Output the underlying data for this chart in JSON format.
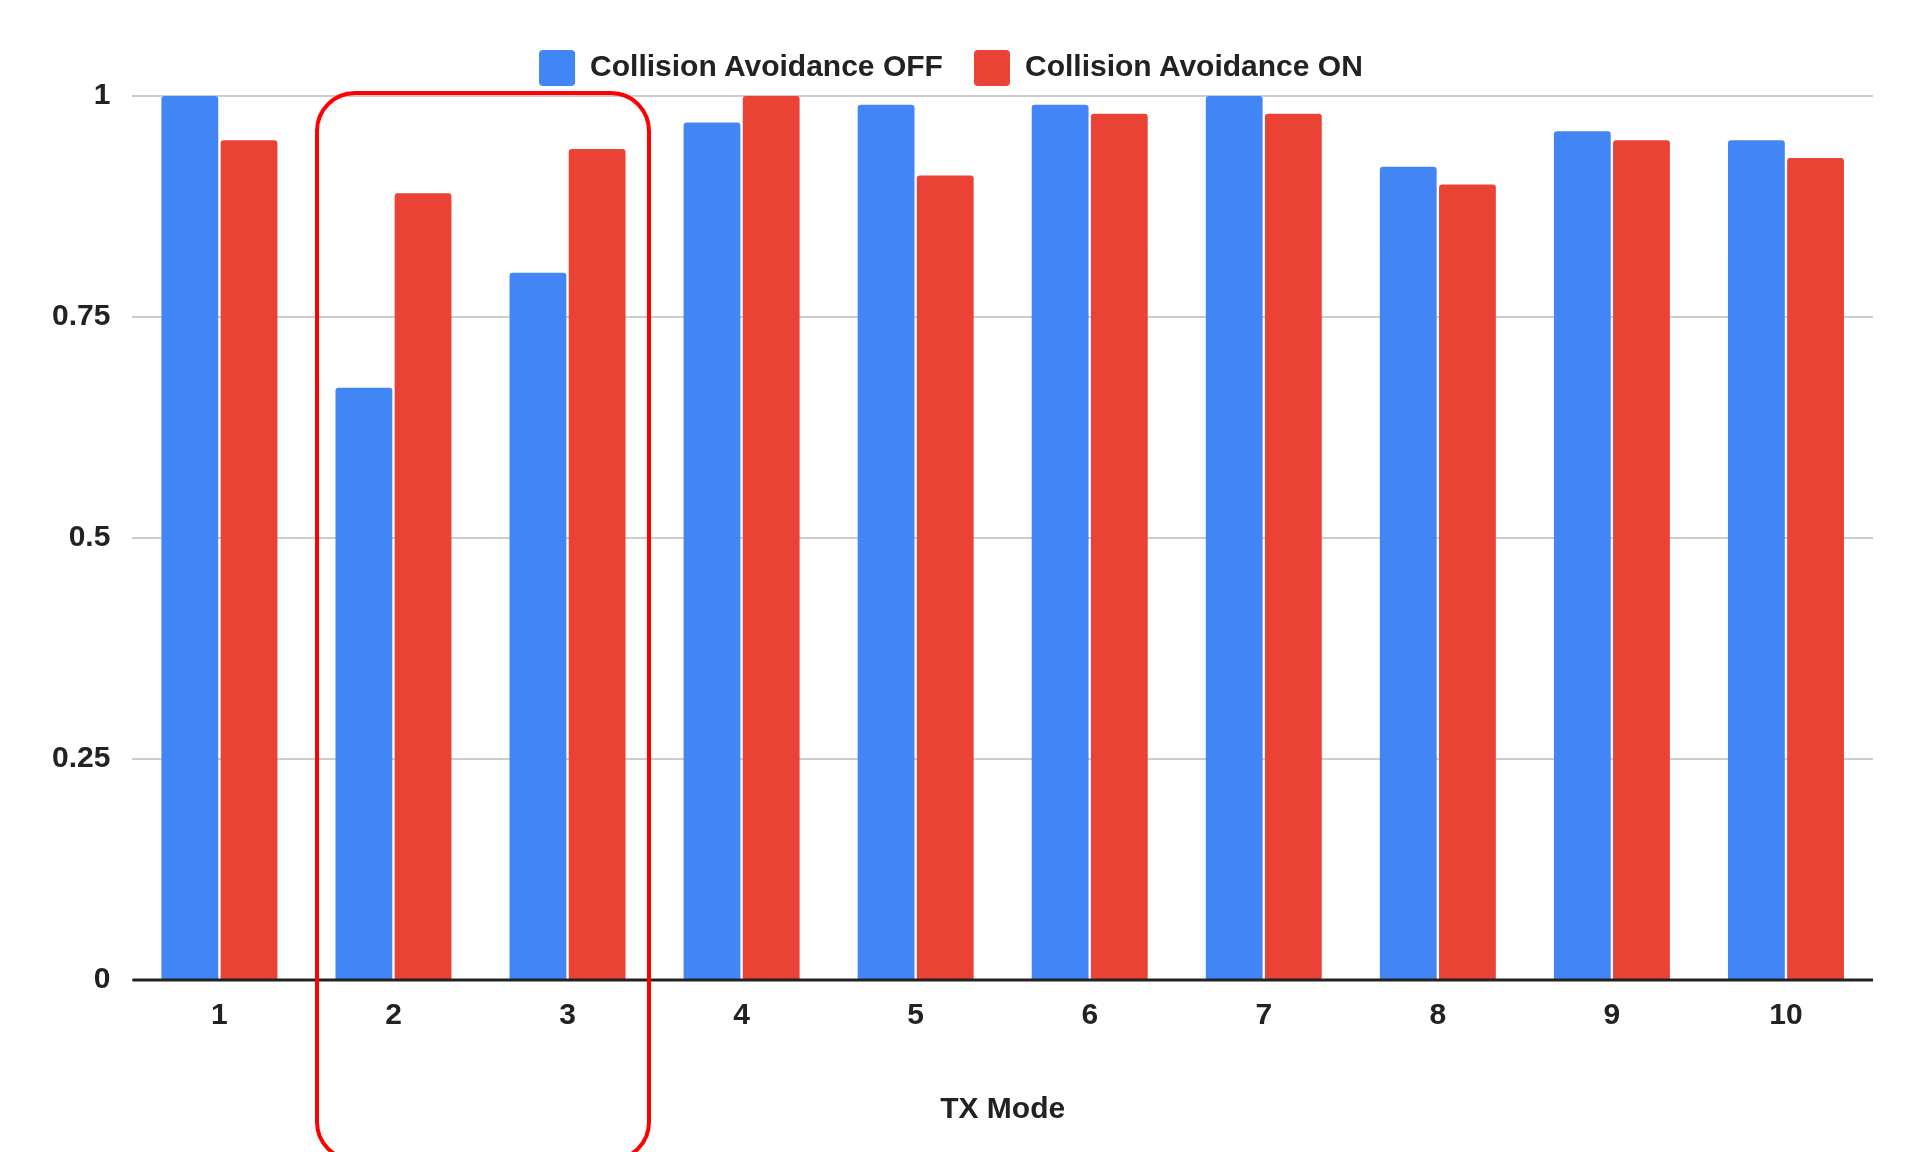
{
  "chart_data": {
    "type": "bar",
    "xlabel": "TX Mode",
    "categories": [
      "1",
      "2",
      "3",
      "4",
      "5",
      "6",
      "7",
      "8",
      "9",
      "10"
    ],
    "series": [
      {
        "name": "Collision Avoidance OFF",
        "color": "#4285f4",
        "values": [
          1.0,
          0.67,
          0.8,
          0.97,
          0.99,
          0.99,
          1.0,
          0.92,
          0.96,
          0.95
        ]
      },
      {
        "name": "Collision Avoidance ON",
        "color": "#ea4335",
        "values": [
          0.95,
          0.89,
          0.94,
          1.0,
          0.91,
          0.98,
          0.98,
          0.9,
          0.95,
          0.93
        ]
      }
    ],
    "ylim": [
      0,
      1
    ],
    "yticks": [
      0,
      0.25,
      0.5,
      0.75,
      1
    ],
    "grid": "y",
    "legend": "top"
  }
}
